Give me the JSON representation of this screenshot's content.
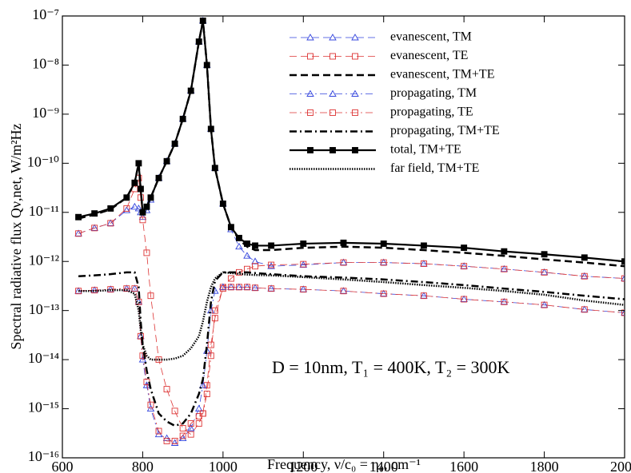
{
  "chart_data": {
    "type": "line",
    "xlabel": "Frequency, ν/c₀ = η₀, cm⁻¹",
    "ylabel": "Spectral radiative flux Qν,net, W/m²Hz",
    "annotation": "D = 10nm, T₁ = 400K, T₂ = 300K",
    "yscale": "log",
    "legend": "upper right",
    "xlim": [
      600,
      2000
    ],
    "xticks": [
      600,
      800,
      1000,
      1200,
      1400,
      1600,
      1800,
      2000
    ],
    "ylim": [
      1e-16,
      1e-07
    ],
    "yticks": [
      {
        "value": 1e-16,
        "label": "10⁻¹⁶"
      },
      {
        "value": 1e-15,
        "label": "10⁻¹⁵"
      },
      {
        "value": 1e-14,
        "label": "10⁻¹⁴"
      },
      {
        "value": 1e-13,
        "label": "10⁻¹³"
      },
      {
        "value": 1e-12,
        "label": "10⁻¹²"
      },
      {
        "value": 1e-11,
        "label": "10⁻¹¹"
      },
      {
        "value": 1e-10,
        "label": "10⁻¹⁰"
      },
      {
        "value": 1e-09,
        "label": "10⁻⁹"
      },
      {
        "value": 1e-08,
        "label": "10⁻⁸"
      },
      {
        "value": 1e-07,
        "label": "10⁻⁷"
      }
    ],
    "x": [
      640,
      680,
      720,
      760,
      780,
      790,
      795,
      800,
      810,
      820,
      840,
      860,
      880,
      900,
      920,
      940,
      950,
      960,
      970,
      980,
      1000,
      1020,
      1040,
      1060,
      1080,
      1120,
      1200,
      1300,
      1400,
      1500,
      1600,
      1700,
      1800,
      1900,
      2000
    ],
    "series": [
      {
        "name": "evanescent, TM",
        "color": "#3344dd",
        "dash": "dash",
        "width": 0.8,
        "marker": "triangle",
        "values": [
          3.7e-12,
          4.8e-12,
          6e-12,
          1.1e-11,
          1.3e-11,
          1.2e-11,
          1e-11,
          8e-12,
          1.1e-11,
          1.8e-11,
          5e-11,
          1.1e-10,
          2.5e-10,
          8e-10,
          3e-09,
          3e-08,
          8e-08,
          1e-08,
          5e-10,
          8e-11,
          1.5e-11,
          4.5e-12,
          2e-12,
          1.3e-12,
          1e-12,
          8e-13,
          8.5e-13,
          9.5e-13,
          9.5e-13,
          9e-13,
          8e-13,
          7e-13,
          6e-13,
          5e-13,
          4.5e-13
        ]
      },
      {
        "name": "evanescent, TE",
        "color": "#dd3333",
        "dash": "dash",
        "width": 0.8,
        "marker": "square",
        "values": [
          3.7e-12,
          4.8e-12,
          6e-12,
          1.2e-11,
          3e-11,
          5e-11,
          2e-11,
          7e-12,
          1.5e-12,
          2e-13,
          1e-14,
          2.5e-15,
          9e-16,
          4e-16,
          3e-16,
          5e-16,
          8e-16,
          3e-15,
          2e-14,
          7e-14,
          3e-13,
          4.5e-13,
          6e-13,
          7e-13,
          8e-13,
          8.5e-13,
          8.8e-13,
          9.5e-13,
          9.5e-13,
          9e-13,
          8e-13,
          7e-13,
          6e-13,
          5e-13,
          4.5e-13
        ]
      },
      {
        "name": "evanescent, TM+TE",
        "color": "#000000",
        "dash": "dash",
        "width": 2.5,
        "values": [
          7.5e-12,
          9e-12,
          1.15e-11,
          2e-11,
          4e-11,
          1e-10,
          3e-11,
          1e-11,
          1.3e-11,
          2e-11,
          5e-11,
          1.1e-10,
          2.5e-10,
          8e-10,
          3e-09,
          3e-08,
          8e-08,
          1e-08,
          5e-10,
          8e-11,
          1.5e-11,
          5e-12,
          2.8e-12,
          2e-12,
          1.7e-12,
          1.7e-12,
          1.9e-12,
          2e-12,
          1.9e-12,
          1.7e-12,
          1.5e-12,
          1.3e-12,
          1.1e-12,
          9.5e-13,
          8e-13
        ]
      },
      {
        "name": "propagating, TM",
        "color": "#3344dd",
        "dash": "dashdot",
        "width": 0.8,
        "marker": "triangle",
        "values": [
          2.5e-13,
          2.6e-13,
          2.7e-13,
          2.8e-13,
          2.8e-13,
          1.5e-13,
          3e-14,
          1e-14,
          3e-15,
          1e-15,
          3e-16,
          2.5e-16,
          2e-16,
          2.5e-16,
          4e-16,
          1e-15,
          3e-15,
          1.5e-14,
          1e-13,
          2.5e-13,
          3e-13,
          3e-13,
          3e-13,
          3e-13,
          2.9e-13,
          2.8e-13,
          2.7e-13,
          2.5e-13,
          2.2e-13,
          2e-13,
          1.7e-13,
          1.5e-13,
          1.3e-13,
          1.05e-13,
          9e-14
        ]
      },
      {
        "name": "propagating, TE",
        "color": "#dd3333",
        "dash": "dashdot",
        "width": 0.8,
        "marker": "square",
        "values": [
          2.5e-13,
          2.6e-13,
          2.7e-13,
          2.8e-13,
          2.8e-13,
          1.5e-13,
          3e-14,
          1.2e-14,
          3.5e-15,
          1.2e-15,
          3.5e-16,
          2.2e-16,
          2.2e-16,
          2.8e-16,
          5e-16,
          7e-16,
          8e-16,
          2e-15,
          1.2e-14,
          1e-13,
          2.8e-13,
          3e-13,
          3e-13,
          3e-13,
          2.9e-13,
          2.8e-13,
          2.7e-13,
          2.5e-13,
          2.2e-13,
          2e-13,
          1.7e-13,
          1.5e-13,
          1.3e-13,
          1.05e-13,
          9e-14
        ]
      },
      {
        "name": "propagating, TM+TE",
        "color": "#000000",
        "dash": "dashdot",
        "width": 2.5,
        "values": [
          5e-13,
          5.2e-13,
          5.5e-13,
          6e-13,
          6e-13,
          3e-13,
          6e-14,
          2e-14,
          6e-15,
          2.5e-15,
          8e-16,
          5.5e-16,
          4.5e-16,
          5e-16,
          8e-16,
          2e-15,
          4e-15,
          2e-14,
          1.5e-13,
          4e-13,
          6e-13,
          6e-13,
          6e-13,
          6e-13,
          5.8e-13,
          5.5e-13,
          5e-13,
          4.7e-13,
          4.3e-13,
          3.8e-13,
          3.3e-13,
          2.8e-13,
          2.4e-13,
          2e-13,
          1.7e-13
        ]
      },
      {
        "name": "total, TM+TE",
        "color": "#000000",
        "dash": "solid",
        "width": 2.2,
        "marker": "square",
        "values": [
          8e-12,
          9.5e-12,
          1.2e-11,
          2e-11,
          4e-11,
          1e-10,
          3e-11,
          1e-11,
          1.3e-11,
          2e-11,
          5e-11,
          1.1e-10,
          2.5e-10,
          8e-10,
          3e-09,
          3e-08,
          8e-08,
          1e-08,
          5e-10,
          8e-11,
          1.5e-11,
          5e-12,
          3e-12,
          2.3e-12,
          2.1e-12,
          2.1e-12,
          2.3e-12,
          2.4e-12,
          2.3e-12,
          2.1e-12,
          1.9e-12,
          1.6e-12,
          1.4e-12,
          1.2e-12,
          1e-12
        ]
      },
      {
        "name": "far field, TM+TE",
        "color": "#000000",
        "dash": "dotted",
        "width": 2.5,
        "values": [
          2.5e-13,
          2.5e-13,
          2.6e-13,
          2.6e-13,
          2.2e-13,
          1e-13,
          4e-14,
          2e-14,
          1.2e-14,
          1e-14,
          1e-14,
          1e-14,
          1.05e-14,
          1.2e-14,
          1.7e-14,
          3e-14,
          6e-14,
          1.5e-13,
          3e-13,
          4.5e-13,
          6e-13,
          5.8e-13,
          5.6e-13,
          5.4e-13,
          5.3e-13,
          5.2e-13,
          4.8e-13,
          4.3e-13,
          3.8e-13,
          3.3e-13,
          2.9e-13,
          2.5e-13,
          2.1e-13,
          1.6e-13,
          1.3e-13
        ]
      }
    ]
  }
}
